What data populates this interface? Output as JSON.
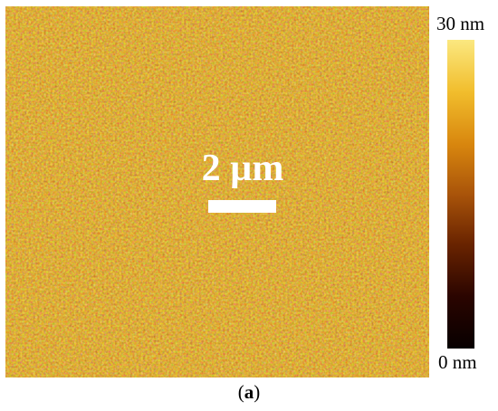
{
  "figure": {
    "scale_bar_label": "2 µm",
    "caption": {
      "open": "(",
      "letter": "a",
      "close": ")"
    }
  },
  "colorbar": {
    "max_label": "30 nm",
    "min_label": "0 nm",
    "colors": [
      "#070000",
      "#2b0500",
      "#6a2400",
      "#a9540a",
      "#d8860e",
      "#f1bd2c",
      "#fbe880"
    ]
  },
  "image": {
    "description_colors": {
      "base": "#b5650c",
      "dark_grain": "#6e2d03",
      "bright_grain": "#f6c23e"
    }
  }
}
